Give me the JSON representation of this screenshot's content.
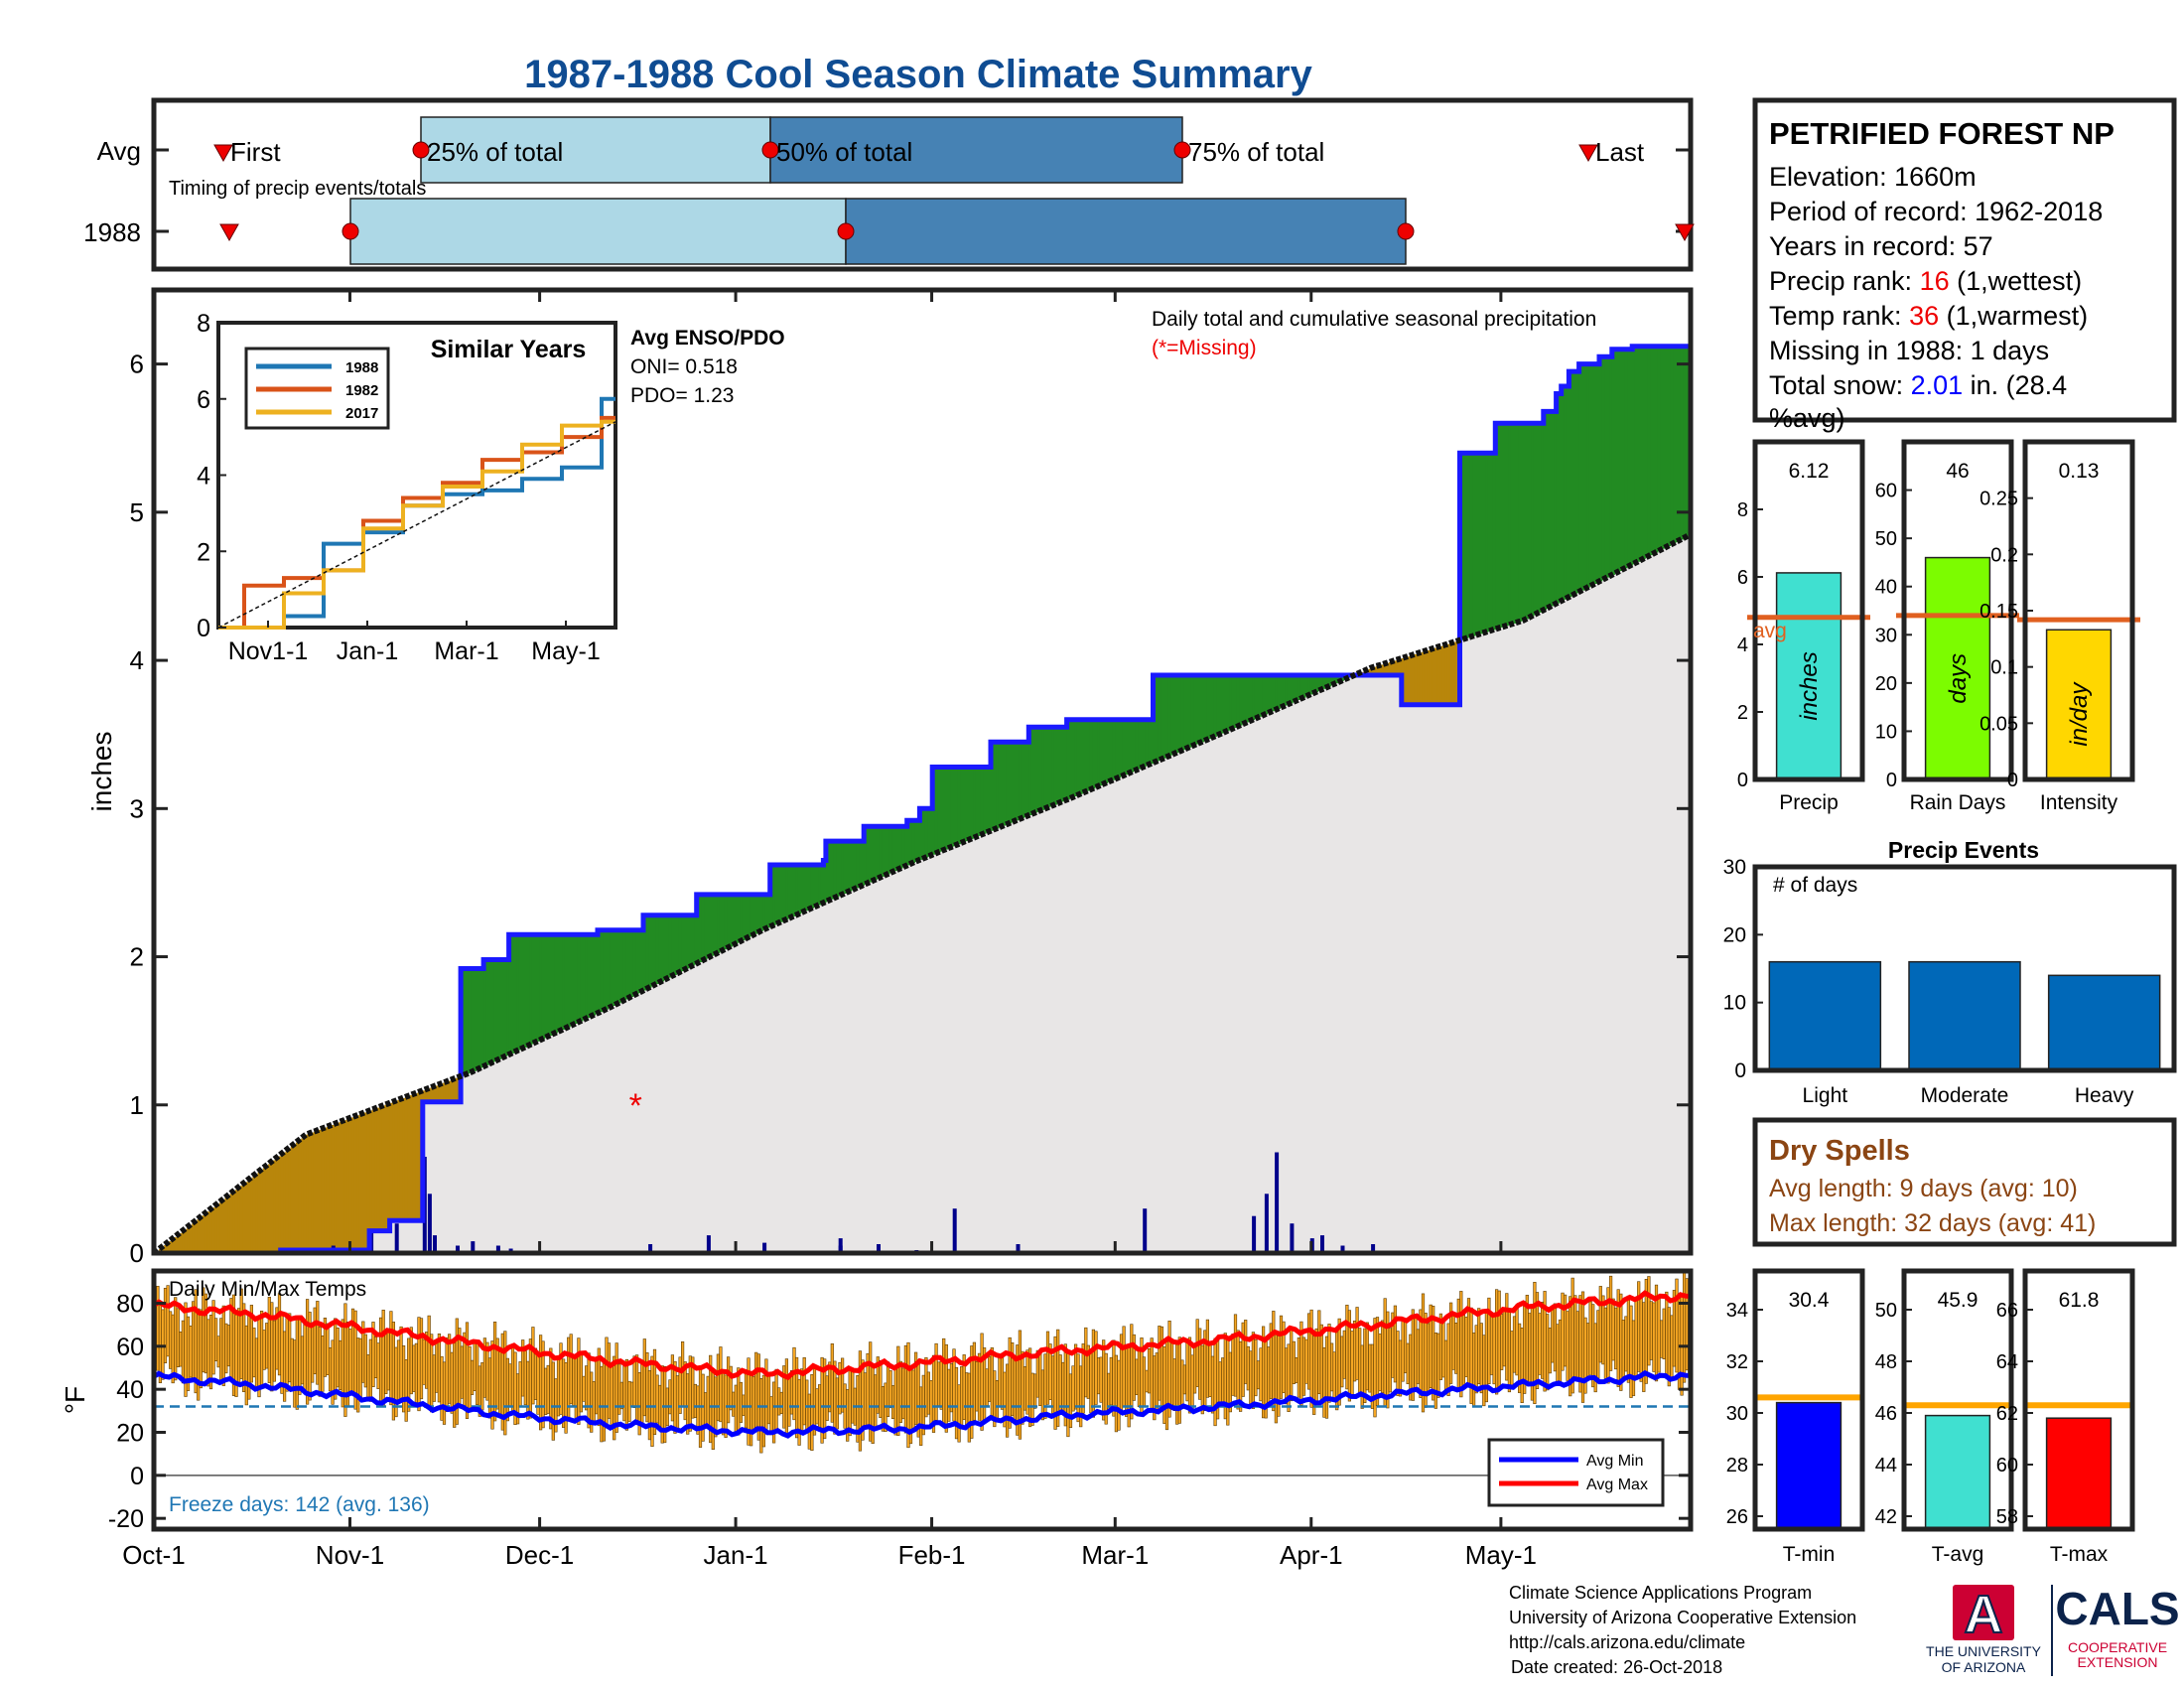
{
  "title": "1987-1988 Cool Season Climate Summary",
  "colors": {
    "title": "#0f4c92",
    "bar_light": "#add8e6",
    "bar_dark": "#4682b4",
    "marker": "#ee0000",
    "green": "#228b22",
    "brown": "#b8860b",
    "normal_fill": "#e8e6e6",
    "obs_line": "#1a1aff",
    "daily_bar": "#00008b",
    "temp_bar": "#f5a623",
    "avg_min": "#0000ff",
    "avg_max": "#ff0000",
    "freeze": "#1f77b4",
    "avg_line_orange": "#e06020",
    "avg_line_gold": "#ffa500",
    "dry": "#8b4513",
    "events": "#0068b8",
    "ua_red": "#cc0033",
    "ua_blue": "#0c234b"
  },
  "timing": {
    "row_labels": [
      "Avg",
      "1988"
    ],
    "avg_labels": {
      "first": "First",
      "p25": "25% of total",
      "p50": "50% of total",
      "p75": "75% of total",
      "last": "Last"
    },
    "caption": "Timing of precip events/totals"
  },
  "precip_panel": {
    "ylabel": "inches",
    "yticks": [
      "0",
      "1",
      "2",
      "3",
      "4",
      "5",
      "6"
    ],
    "caption": "Daily total and cumulative seasonal precipitation",
    "missing_note": "(*=Missing)",
    "missing_marker": "*"
  },
  "inset": {
    "title": "Similar Years",
    "legend": [
      "1988",
      "1982",
      "2017"
    ],
    "series_colors": [
      "#1f77b4",
      "#d95319",
      "#edb120"
    ],
    "yticks": [
      "0",
      "2",
      "4",
      "6",
      "8"
    ],
    "xticks": [
      "Nov1-1",
      "Jan-1",
      "Mar-1",
      "May-1"
    ],
    "enso_title": "Avg ENSO/PDO",
    "oni": "ONI= 0.518",
    "pdo": "PDO= 1.23"
  },
  "temp_panel": {
    "caption": "Daily Min/Max Temps",
    "ylabel": "°F",
    "yticks": [
      "80",
      "60",
      "40",
      "20",
      "0",
      "-20"
    ],
    "freeze_text": "Freeze days: 142 (avg. 136)",
    "legend": [
      "Avg Min",
      "Avg Max"
    ]
  },
  "xticks": [
    "Oct-1",
    "Nov-1",
    "Dec-1",
    "Jan-1",
    "Feb-1",
    "Mar-1",
    "Apr-1",
    "May-1"
  ],
  "station": {
    "name": "PETRIFIED FOREST NP",
    "elevation": "Elevation: 1660m",
    "period": "Period of record: 1962-2018",
    "years": "Years in record: 57",
    "precip_rank_label": "Precip rank: ",
    "precip_rank_value": "16",
    "precip_rank_suffix": " (1,wettest)",
    "temp_rank_label": "Temp rank: ",
    "temp_rank_value": "36",
    "temp_rank_suffix": " (1,warmest)",
    "missing": "Missing in 1988: 1 days",
    "snow_label": "Total snow: ",
    "snow_value": "2.01",
    "snow_suffix": " in. (28.4",
    "snow_line2": "%avg)"
  },
  "mini_bars": [
    {
      "label": "Precip",
      "value_text": "6.12",
      "unit": "inches",
      "value": 6.12,
      "avg": 4.8,
      "ymax": 10,
      "yticks": [
        "0",
        "2",
        "4",
        "6",
        "8"
      ],
      "color": "#40e0d0",
      "avg_text": "avg"
    },
    {
      "label": "Rain Days",
      "value_text": "46",
      "unit": "days",
      "value": 46,
      "avg": 34,
      "ymax": 70,
      "yticks": [
        "0",
        "10",
        "20",
        "30",
        "40",
        "50",
        "60"
      ],
      "color": "#7cfc00"
    },
    {
      "label": "Intensity",
      "value_text": "0.13",
      "unit": "in/day",
      "value": 0.133,
      "avg": 0.142,
      "ymax": 0.3,
      "yticks": [
        "0",
        "0.05",
        "0.1",
        "0.15",
        "0.2",
        "0.25"
      ],
      "color": "#ffd700"
    }
  ],
  "precip_events": {
    "title": "Precip Events",
    "ylabel_text": "# of days",
    "yticks": [
      "0",
      "10",
      "20",
      "30"
    ],
    "categories": [
      "Light",
      "Moderate",
      "Heavy"
    ],
    "values": [
      16,
      16,
      14
    ]
  },
  "dry_spells": {
    "title": "Dry Spells",
    "avg": "Avg length: 9 days (avg: 10)",
    "max": "Max length: 32 days (avg: 41)"
  },
  "temp_bars": [
    {
      "label": "T-min",
      "value_text": "30.4",
      "value": 30.4,
      "avg": 30.6,
      "ymin": 25.5,
      "ymax": 35.5,
      "yticks": [
        "26",
        "28",
        "30",
        "32",
        "34"
      ],
      "color": "#0000ff"
    },
    {
      "label": "T-avg",
      "value_text": "45.9",
      "value": 45.9,
      "avg": 46.3,
      "ymin": 41.5,
      "ymax": 51.5,
      "yticks": [
        "42",
        "44",
        "46",
        "48",
        "50"
      ],
      "color": "#40e0d0"
    },
    {
      "label": "T-max",
      "value_text": "61.8",
      "value": 61.8,
      "avg": 62.3,
      "ymin": 57.5,
      "ymax": 67.5,
      "yticks": [
        "58",
        "60",
        "62",
        "64",
        "66"
      ],
      "color": "#ff0000"
    }
  ],
  "footer": {
    "line1": "Climate Science Applications Program",
    "line2": "University of Arizona Cooperative Extension",
    "line3": "http://cals.arizona.edu/climate",
    "line4": "Date created: 26-Oct-2018"
  },
  "logos": {
    "ua_letter": "A",
    "ua_line1": "THE UNIVERSITY",
    "ua_line2": "OF ARIZONA",
    "cals": "CALS",
    "cals_line1": "COOPERATIVE",
    "cals_line2": "EXTENSION"
  },
  "chart_data": {
    "type": "area",
    "title": "1987-1988 Cool Season Climate Summary",
    "ylabel": "inches",
    "ylim": [
      0,
      6.5
    ],
    "observed_cumulative": {
      "name": "1988",
      "days": [
        0,
        50,
        85,
        93,
        103,
        106,
        121,
        130,
        140,
        160,
        175,
        193,
        214,
        243,
        264,
        265,
        280,
        292,
        297,
        302,
        307,
        320,
        330,
        345,
        360,
        375,
        394,
        420,
        465,
        492,
        500,
        515,
        529,
        548,
        553,
        555,
        558,
        562,
        570,
        575,
        580,
        583,
        606
      ],
      "values": [
        0,
        0.02,
        0.15,
        0.22,
        0.22,
        1.02,
        1.92,
        1.98,
        2.15,
        2.15,
        2.18,
        2.28,
        2.42,
        2.62,
        2.65,
        2.78,
        2.88,
        2.88,
        2.92,
        3.0,
        3.28,
        3.28,
        3.45,
        3.55,
        3.6,
        3.6,
        3.9,
        3.9,
        3.9,
        3.7,
        3.7,
        5.4,
        5.6,
        5.68,
        5.8,
        5.85,
        5.95,
        6.0,
        6.05,
        6.1,
        6.1,
        6.12,
        6.12
      ]
    },
    "normal_cumulative": {
      "days": [
        0,
        60,
        125,
        180,
        240,
        300,
        360,
        420,
        480,
        540,
        606
      ],
      "values": [
        0,
        0.8,
        1.22,
        1.66,
        2.18,
        2.64,
        3.06,
        3.5,
        3.95,
        4.27,
        4.85
      ]
    },
    "daily_precip": {
      "days": [
        50,
        70,
        85,
        95,
        106,
        108,
        110,
        119,
        125,
        135,
        140,
        195,
        218,
        240,
        270,
        270,
        285,
        300,
        315,
        340,
        390,
        433,
        438,
        442,
        448,
        456,
        460,
        468,
        480
      ],
      "values": [
        0.02,
        0.05,
        0.15,
        0.2,
        0.65,
        0.4,
        0.12,
        0.05,
        0.08,
        0.05,
        0.03,
        0.06,
        0.12,
        0.07,
        0.1,
        0.05,
        0.06,
        0.02,
        0.3,
        0.06,
        0.3,
        0.25,
        0.4,
        0.68,
        0.2,
        0.1,
        0.12,
        0.05,
        0.06
      ]
    },
    "missing_day": 190,
    "similar_years": {
      "x_range": [
        "Oct-1",
        "May-31"
      ],
      "ylim": [
        0,
        8
      ],
      "1988": [
        0,
        0,
        0.3,
        2.2,
        2.5,
        3.2,
        3.5,
        3.6,
        3.9,
        4.2,
        6.0
      ],
      "1982": [
        0,
        1.1,
        1.3,
        1.5,
        2.8,
        3.4,
        3.8,
        4.4,
        4.6,
        5.0,
        5.5
      ],
      "2017": [
        0,
        0,
        0.9,
        1.5,
        2.6,
        3.2,
        3.7,
        4.1,
        4.8,
        5.3,
        5.4
      ]
    },
    "temps": {
      "ylim": [
        -25,
        95
      ],
      "avg_max_days": [
        0,
        40,
        90,
        140,
        190,
        240,
        300,
        360,
        420,
        480,
        540,
        606
      ],
      "avg_max": [
        79,
        75,
        67,
        59,
        52,
        47,
        52,
        58,
        63,
        70,
        78,
        84
      ],
      "avg_min": [
        46,
        42,
        35,
        28,
        23,
        20,
        22,
        28,
        32,
        37,
        42,
        47
      ],
      "freeze_line": 32,
      "zero_line": 0
    }
  }
}
